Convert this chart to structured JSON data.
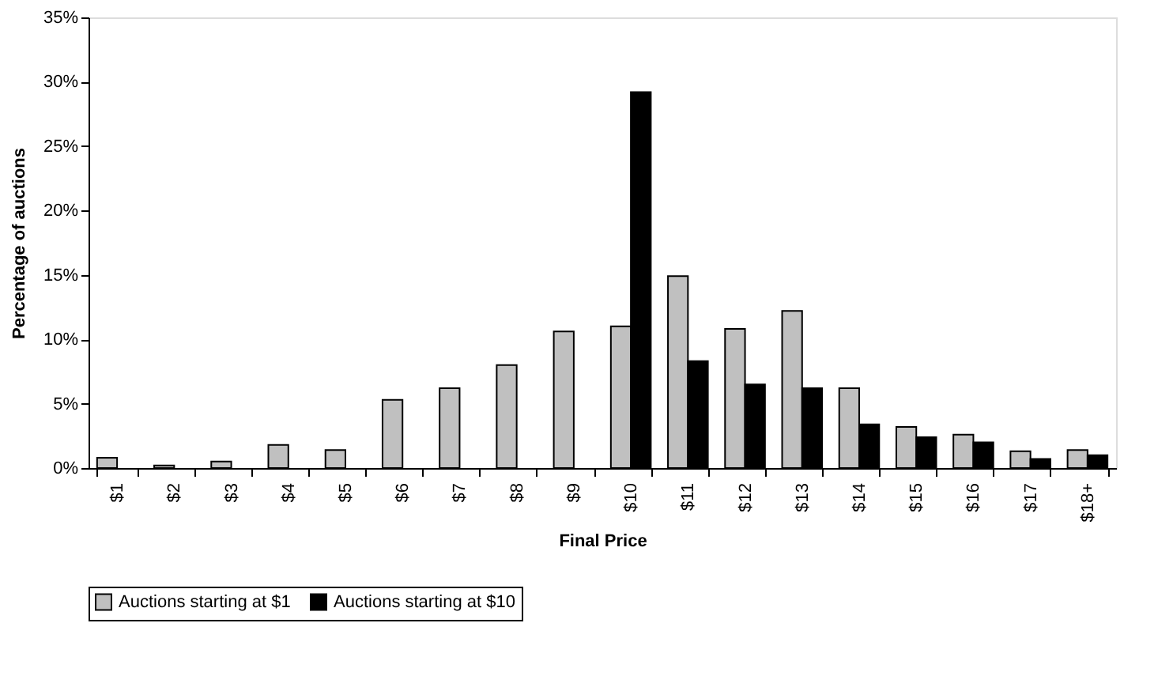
{
  "chart_data": {
    "type": "bar",
    "xlabel": "Final Price",
    "ylabel": "Percentage of auctions",
    "categories": [
      "$1",
      "$2",
      "$3",
      "$4",
      "$5",
      "$6",
      "$7",
      "$8",
      "$9",
      "$10",
      "$11",
      "$12",
      "$13",
      "$14",
      "$15",
      "$16",
      "$17",
      "$18+"
    ],
    "series": [
      {
        "name": "Auctions starting at $1",
        "color": "#c0c0c0",
        "values": [
          0.8,
          0.2,
          0.5,
          1.8,
          1.4,
          5.3,
          6.2,
          8.0,
          10.6,
          11.0,
          14.9,
          10.8,
          12.2,
          6.2,
          3.2,
          2.6,
          1.3,
          1.4
        ]
      },
      {
        "name": "Auctions starting at $10",
        "color": "#000000",
        "values": [
          null,
          null,
          null,
          null,
          null,
          null,
          null,
          null,
          null,
          29.2,
          8.3,
          6.5,
          6.2,
          3.4,
          2.4,
          2.0,
          0.7,
          1.0
        ]
      }
    ],
    "ylim": [
      0,
      35
    ],
    "yticks": [
      {
        "value": 0,
        "label": "0%"
      },
      {
        "value": 5,
        "label": "5%"
      },
      {
        "value": 10,
        "label": "10%"
      },
      {
        "value": 15,
        "label": "15%"
      },
      {
        "value": 20,
        "label": "20%"
      },
      {
        "value": 25,
        "label": "25%"
      },
      {
        "value": 30,
        "label": "30%"
      },
      {
        "value": 35,
        "label": "35%"
      }
    ],
    "grid": false,
    "legend": "bottom"
  }
}
